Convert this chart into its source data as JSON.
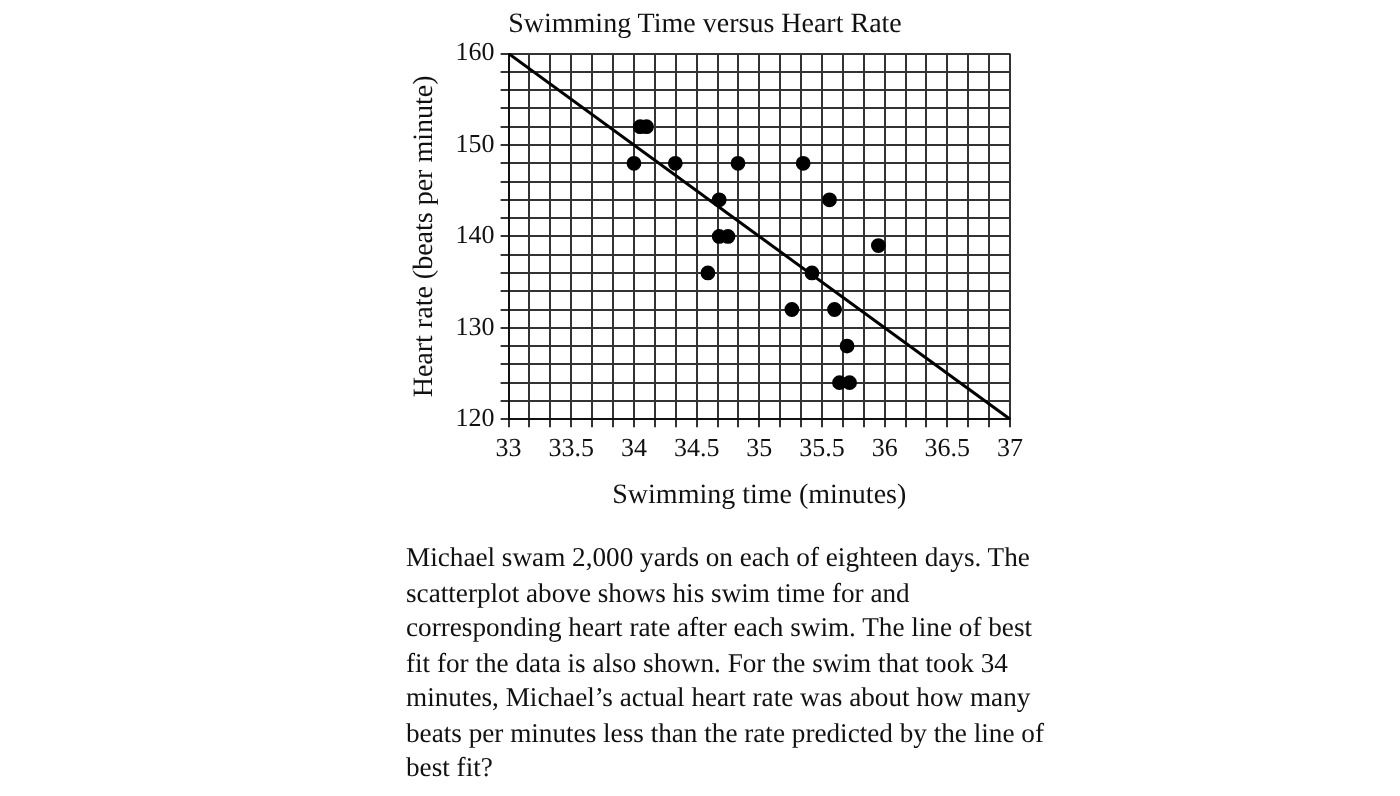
{
  "chart_data": {
    "type": "scatter",
    "title": "Swimming Time versus Heart Rate",
    "xlabel": "Swimming time (minutes)",
    "ylabel": "Heart rate (beats per minute)",
    "x": [
      34,
      34.05,
      34.1,
      34.33,
      34.83,
      34.68,
      34.68,
      34.75,
      34.59,
      35.35,
      35.56,
      35.95,
      35.42,
      35.26,
      35.6,
      35.7,
      35.64,
      35.72
    ],
    "series": [
      {
        "type": "scatter",
        "color": "#000000",
        "marker": "circle",
        "values": [
          148,
          152,
          152,
          148,
          148,
          144,
          140,
          140,
          136,
          148,
          144,
          139,
          136,
          132,
          132,
          128,
          124,
          124
        ]
      },
      {
        "type": "line",
        "color": "#000000",
        "marker": "none",
        "line_style": "solid",
        "x": [
          33,
          37
        ],
        "values": [
          160,
          120
        ]
      }
    ],
    "xlim": [
      33,
      37
    ],
    "ylim": [
      120,
      160
    ],
    "xticks": [
      33,
      {
        "value": 33.1667,
        "label": null
      },
      {
        "value": 33.3333,
        "label": null
      },
      33.5,
      {
        "value": 33.6667,
        "label": null
      },
      {
        "value": 33.8333,
        "label": null
      },
      34,
      {
        "value": 34.1667,
        "label": null
      },
      {
        "value": 34.3333,
        "label": null
      },
      34.5,
      {
        "value": 34.6667,
        "label": null
      },
      {
        "value": 34.8333,
        "label": null
      },
      35,
      {
        "value": 35.1667,
        "label": null
      },
      {
        "value": 35.3333,
        "label": null
      },
      35.5,
      {
        "value": 35.6667,
        "label": null
      },
      {
        "value": 35.8333,
        "label": null
      },
      36,
      {
        "value": 36.1667,
        "label": null
      },
      {
        "value": 36.3333,
        "label": null
      },
      36.5,
      {
        "value": 36.6667,
        "label": null
      },
      {
        "value": 36.8333,
        "label": null
      },
      37
    ],
    "yticks": [
      120,
      {
        "value": 122,
        "label": null
      },
      {
        "value": 124,
        "label": null
      },
      {
        "value": 126,
        "label": null
      },
      {
        "value": 128,
        "label": null
      },
      130,
      {
        "value": 132,
        "label": null
      },
      {
        "value": 134,
        "label": null
      },
      {
        "value": 136,
        "label": null
      },
      {
        "value": 138,
        "label": null
      },
      140,
      {
        "value": 142,
        "label": null
      },
      {
        "value": 144,
        "label": null
      },
      {
        "value": 146,
        "label": null
      },
      {
        "value": 148,
        "label": null
      },
      150,
      {
        "value": 152,
        "label": null
      },
      {
        "value": 154,
        "label": null
      },
      {
        "value": 156,
        "label": null
      },
      {
        "value": 158,
        "label": null
      },
      160
    ],
    "grid": true,
    "legend": false,
    "annotations": [
      "Michael swam 2,000 yards on each of eighteen days. The scatterplot above shows his swim time for and corresponding heart rate after each swim.  The line of best fit for the data is also shown.  For the swim that took 34 minutes, Michael’s actual heart rate was about how many beats per minutes less than the rate predicted by the line of best fit?"
    ]
  }
}
